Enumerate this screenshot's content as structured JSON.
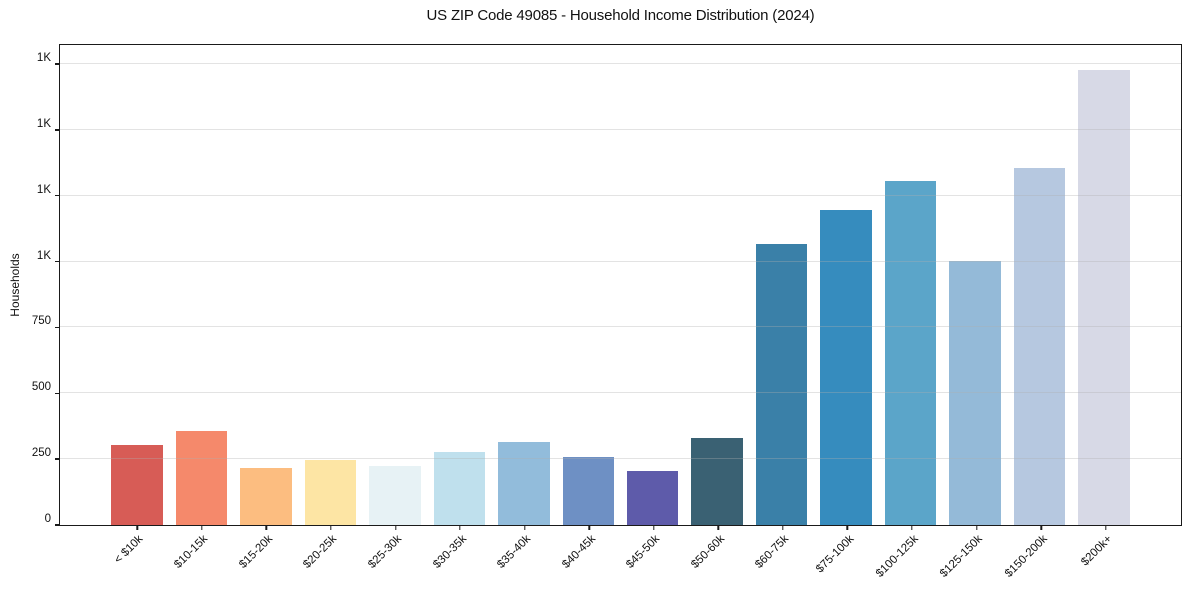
{
  "title": "US ZIP Code 49085 - Household Income Distribution (2024)",
  "y_axis_label": "Households",
  "colors": {
    "background": "#ffffff",
    "axis": "#1a1a1a",
    "grid": "#e9e9e9",
    "text": "#111111"
  },
  "chart_data": {
    "type": "bar",
    "title": "US ZIP Code 49085 - Household Income Distribution (2024)",
    "xlabel": "",
    "ylabel": "Households",
    "ylim": [
      0,
      1830
    ],
    "grid": "horizontal-only",
    "legend": "none",
    "x_tick_rotation_deg": 45,
    "categories": [
      "< $10k",
      "$10-15k",
      "$15-20k",
      "$20-25k",
      "$25-30k",
      "$30-35k",
      "$35-40k",
      "$40-45k",
      "$45-50k",
      "$50-60k",
      "$60-75k",
      "$75-100k",
      "$100-125k",
      "$125-150k",
      "$150-200k",
      "$200k+"
    ],
    "values": [
      305,
      357,
      217,
      247,
      224,
      277,
      315,
      258,
      206,
      331,
      1070,
      1200,
      1312,
      1005,
      1360,
      1735
    ],
    "bar_colors": [
      "#d75c56",
      "#f5896b",
      "#fcbd80",
      "#fde5a4",
      "#e7f2f5",
      "#bfe0ed",
      "#92bcdb",
      "#6e90c4",
      "#5e5baa",
      "#3a6173",
      "#3a80a8",
      "#368cbe",
      "#5ba5c9",
      "#94bad8",
      "#b6c8e0",
      "#d7d9e6"
    ],
    "y_ticks": [
      {
        "value": 0,
        "label": "0"
      },
      {
        "value": 250,
        "label": "250"
      },
      {
        "value": 500,
        "label": "500"
      },
      {
        "value": 750,
        "label": "750"
      },
      {
        "value": 1000,
        "label": "1K"
      },
      {
        "value": 1250,
        "label": "1K"
      },
      {
        "value": 1500,
        "label": "1K"
      },
      {
        "value": 1750,
        "label": "1K"
      }
    ]
  }
}
